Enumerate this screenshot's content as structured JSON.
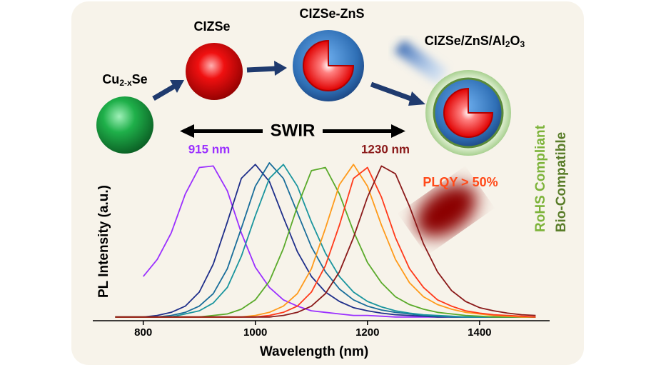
{
  "chart_data": {
    "type": "line",
    "xlabel": "Wavelength (nm)",
    "ylabel": "PL Intensity (a.u.)",
    "x": [
      750,
      775,
      800,
      825,
      850,
      875,
      900,
      925,
      950,
      975,
      1000,
      1025,
      1050,
      1075,
      1100,
      1125,
      1150,
      1175,
      1200,
      1225,
      1250,
      1275,
      1300,
      1325,
      1350,
      1375,
      1400,
      1425,
      1450,
      1475,
      1500
    ],
    "xlim": [
      710,
      1525
    ],
    "xticks": [
      800,
      1000,
      1200,
      1400
    ],
    "ylim": [
      0,
      1
    ],
    "series": [
      {
        "color": "#9b30ff",
        "values": [
          null,
          null,
          0.27,
          0.38,
          0.55,
          0.8,
          0.97,
          0.98,
          0.82,
          0.55,
          0.33,
          0.2,
          0.12,
          0.08,
          0.05,
          0.04,
          0.03,
          0.02,
          0.02,
          0.015,
          0.01,
          0.01,
          0.01,
          0.01,
          0.01,
          0.01,
          0.01,
          0.01,
          0.01,
          0.01,
          0.01
        ]
      },
      {
        "color": "#1f2f8a",
        "values": [
          0.01,
          0.01,
          0.01,
          0.02,
          0.04,
          0.08,
          0.17,
          0.35,
          0.62,
          0.9,
          0.99,
          0.88,
          0.65,
          0.43,
          0.27,
          0.17,
          0.11,
          0.07,
          0.05,
          0.035,
          0.025,
          0.02,
          0.015,
          0.01,
          0.01,
          0.01,
          0.01,
          0.01,
          0.01,
          0.01,
          0.01
        ]
      },
      {
        "color": "#1a6e9a",
        "values": [
          0.01,
          0.01,
          0.01,
          0.01,
          0.02,
          0.04,
          0.08,
          0.16,
          0.32,
          0.58,
          0.85,
          1.0,
          0.9,
          0.68,
          0.46,
          0.3,
          0.19,
          0.12,
          0.08,
          0.055,
          0.04,
          0.03,
          0.02,
          0.015,
          0.01,
          0.01,
          0.01,
          0.01,
          0.01,
          0.01,
          0.01
        ]
      },
      {
        "color": "#1a959e",
        "values": [
          0.01,
          0.01,
          0.01,
          0.01,
          0.01,
          0.03,
          0.05,
          0.1,
          0.2,
          0.4,
          0.66,
          0.9,
          0.99,
          0.85,
          0.62,
          0.42,
          0.27,
          0.17,
          0.11,
          0.075,
          0.05,
          0.035,
          0.025,
          0.02,
          0.015,
          0.01,
          0.01,
          0.01,
          0.01,
          0.01,
          0.01
        ]
      },
      {
        "color": "#5aaa2a",
        "values": [
          0.01,
          0.01,
          0.01,
          0.01,
          0.01,
          0.01,
          0.01,
          0.02,
          0.03,
          0.06,
          0.12,
          0.24,
          0.45,
          0.72,
          0.95,
          0.97,
          0.8,
          0.56,
          0.36,
          0.23,
          0.14,
          0.09,
          0.06,
          0.04,
          0.03,
          0.02,
          0.015,
          0.01,
          0.01,
          0.01,
          0.01
        ]
      },
      {
        "color": "#ff9a1a",
        "values": [
          0.01,
          0.01,
          0.01,
          0.01,
          0.01,
          0.01,
          0.01,
          0.01,
          0.01,
          0.01,
          0.02,
          0.04,
          0.08,
          0.16,
          0.32,
          0.58,
          0.86,
          0.99,
          0.85,
          0.6,
          0.38,
          0.23,
          0.14,
          0.09,
          0.06,
          0.04,
          0.03,
          0.02,
          0.015,
          0.01,
          0.01
        ]
      },
      {
        "color": "#ff3a1a",
        "values": [
          0.01,
          0.01,
          0.01,
          0.01,
          0.01,
          0.01,
          0.01,
          0.01,
          0.01,
          0.01,
          0.01,
          0.02,
          0.04,
          0.08,
          0.17,
          0.34,
          0.6,
          0.9,
          0.97,
          0.78,
          0.52,
          0.32,
          0.2,
          0.12,
          0.08,
          0.05,
          0.035,
          0.025,
          0.02,
          0.015,
          0.01
        ]
      },
      {
        "color": "#8b1a1a",
        "values": [
          0.01,
          0.01,
          0.01,
          0.01,
          0.01,
          0.01,
          0.01,
          0.01,
          0.01,
          0.01,
          0.01,
          0.01,
          0.02,
          0.04,
          0.08,
          0.16,
          0.3,
          0.52,
          0.78,
          0.98,
          0.93,
          0.72,
          0.48,
          0.3,
          0.18,
          0.11,
          0.07,
          0.05,
          0.035,
          0.025,
          0.02
        ]
      }
    ],
    "annotations": {
      "peak_low": "915 nm",
      "peak_high": "1230 nm",
      "band": "SWIR",
      "plqy": "PLQY > 50%",
      "rohs": "RoHS Compliant",
      "bio": "Bio-Compatible"
    },
    "particles": [
      [
        "Cu",
        "2-x",
        "Se"
      ],
      [
        "CIZSe"
      ],
      [
        "CIZSe-ZnS"
      ],
      [
        "CIZSe/ZnS/Al",
        "2",
        "O",
        "3"
      ]
    ]
  }
}
